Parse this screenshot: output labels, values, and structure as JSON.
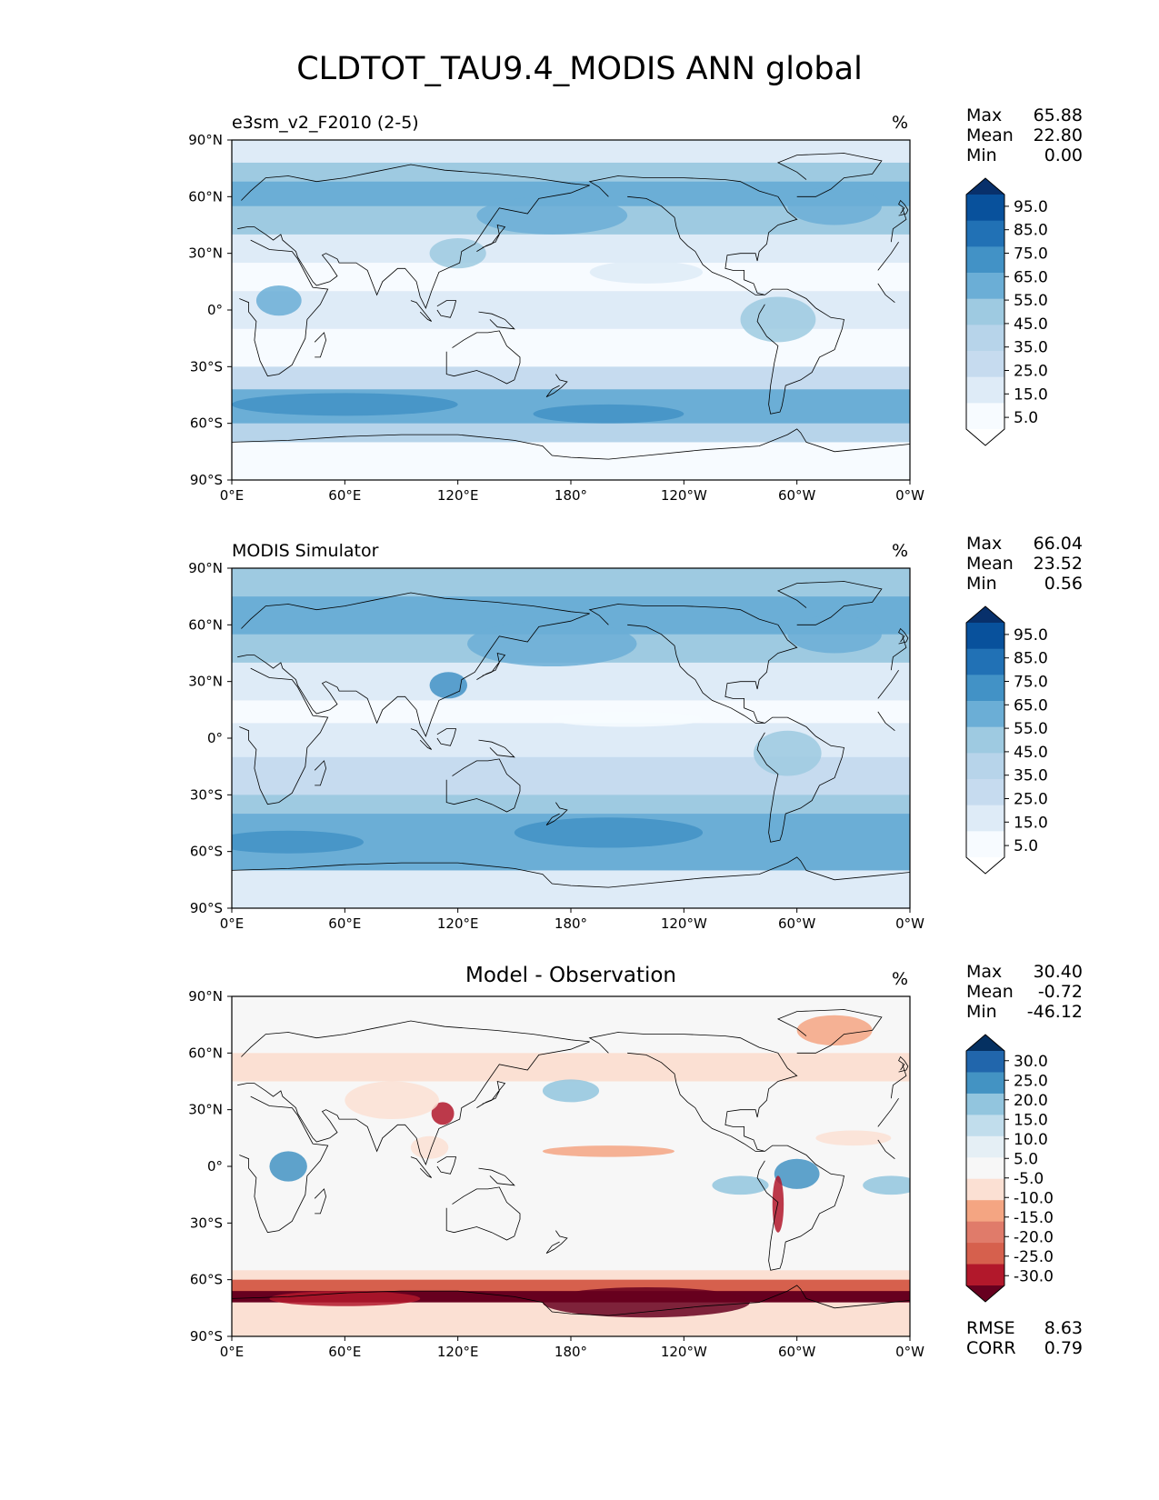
{
  "title": "CLDTOT_TAU9.4_MODIS ANN global",
  "lat_ticks": [
    "90°N",
    "60°N",
    "30°N",
    "0°",
    "30°S",
    "60°S",
    "90°S"
  ],
  "lon_ticks": [
    "0°E",
    "60°E",
    "120°E",
    "180°",
    "120°W",
    "60°W",
    "0°W"
  ],
  "panels": [
    {
      "left_title": "e3sm_v2_F2010 (2-5)",
      "center_title": "",
      "units": "%",
      "stats": [
        {
          "label": "Max",
          "value": "65.88"
        },
        {
          "label": "Mean",
          "value": "22.80"
        },
        {
          "label": "Min",
          "value": "0.00"
        }
      ],
      "colorbar": {
        "labels": [
          "95.0",
          "85.0",
          "75.0",
          "65.0",
          "55.0",
          "45.0",
          "35.0",
          "25.0",
          "15.0",
          "5.0"
        ],
        "colors": [
          "#08306b",
          "#08519c",
          "#2171b5",
          "#4292c6",
          "#6baed6",
          "#9ecae1",
          "#b7d4ea",
          "#c6dbef",
          "#deebf7",
          "#f7fbff",
          "#ffffff"
        ]
      },
      "extra_stats": []
    },
    {
      "left_title": "MODIS Simulator",
      "center_title": "",
      "units": "%",
      "stats": [
        {
          "label": "Max",
          "value": "66.04"
        },
        {
          "label": "Mean",
          "value": "23.52"
        },
        {
          "label": "Min",
          "value": "0.56"
        }
      ],
      "colorbar": {
        "labels": [
          "95.0",
          "85.0",
          "75.0",
          "65.0",
          "55.0",
          "45.0",
          "35.0",
          "25.0",
          "15.0",
          "5.0"
        ],
        "colors": [
          "#08306b",
          "#08519c",
          "#2171b5",
          "#4292c6",
          "#6baed6",
          "#9ecae1",
          "#b7d4ea",
          "#c6dbef",
          "#deebf7",
          "#f7fbff",
          "#ffffff"
        ]
      },
      "extra_stats": []
    },
    {
      "left_title": "",
      "center_title": "Model - Observation",
      "units": "%",
      "stats": [
        {
          "label": "Max",
          "value": "30.40"
        },
        {
          "label": "Mean",
          "value": "-0.72"
        },
        {
          "label": "Min",
          "value": "-46.12"
        }
      ],
      "colorbar": {
        "labels": [
          "30.0",
          "25.0",
          "20.0",
          "15.0",
          "10.0",
          "5.0",
          "-5.0",
          "-10.0",
          "-15.0",
          "-20.0",
          "-25.0",
          "-30.0"
        ],
        "colors": [
          "#053061",
          "#2166ac",
          "#4393c3",
          "#92c5de",
          "#c1ddec",
          "#e5eff5",
          "#f7f7f7",
          "#fbe0d3",
          "#f4a582",
          "#e07b6a",
          "#d6604d",
          "#b2182b",
          "#67001f"
        ]
      },
      "extra_stats": [
        {
          "label": "RMSE",
          "value": "8.63"
        },
        {
          "label": "CORR",
          "value": "0.79"
        }
      ]
    }
  ]
}
